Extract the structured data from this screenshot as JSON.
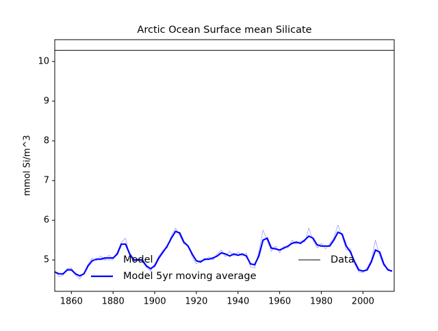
{
  "chart_data": {
    "type": "line",
    "title": "Arctic Ocean Surface mean Silicate",
    "ylabel": "mmol Si/m^3",
    "xlim": [
      1852,
      2015
    ],
    "ylim": [
      4.21,
      10.55
    ],
    "xticks": [
      1860,
      1880,
      1900,
      1920,
      1940,
      1960,
      1980,
      2000
    ],
    "yticks": [
      5,
      6,
      7,
      8,
      9,
      10
    ],
    "legend": "lower center",
    "x": [
      1852,
      1854,
      1856,
      1858,
      1860,
      1862,
      1864,
      1866,
      1868,
      1870,
      1872,
      1874,
      1876,
      1878,
      1880,
      1882,
      1884,
      1886,
      1888,
      1890,
      1892,
      1894,
      1896,
      1898,
      1900,
      1902,
      1904,
      1906,
      1908,
      1910,
      1912,
      1914,
      1916,
      1918,
      1920,
      1922,
      1924,
      1926,
      1928,
      1930,
      1932,
      1934,
      1936,
      1938,
      1940,
      1942,
      1944,
      1946,
      1948,
      1950,
      1952,
      1954,
      1956,
      1958,
      1960,
      1962,
      1964,
      1966,
      1968,
      1970,
      1972,
      1974,
      1976,
      1978,
      1980,
      1982,
      1984,
      1986,
      1988,
      1990,
      1992,
      1994,
      1996,
      1998,
      2000,
      2002,
      2004,
      2006,
      2008,
      2010,
      2012,
      2014
    ],
    "series": [
      {
        "name": "Model",
        "color": "#8080ff",
        "width": 0.6,
        "values": [
          4.72,
          4.58,
          4.62,
          4.78,
          4.8,
          4.62,
          4.52,
          4.68,
          4.9,
          5.05,
          4.98,
          5.1,
          5.0,
          5.12,
          5.02,
          5.2,
          5.45,
          5.55,
          5.1,
          4.95,
          5.05,
          4.95,
          4.82,
          4.72,
          4.9,
          5.1,
          5.25,
          5.3,
          5.62,
          5.8,
          5.62,
          5.4,
          5.38,
          5.08,
          4.9,
          5.0,
          4.98,
          5.08,
          5.0,
          5.15,
          5.25,
          5.08,
          5.22,
          5.1,
          5.2,
          5.1,
          5.18,
          4.82,
          4.8,
          5.2,
          5.75,
          5.5,
          5.22,
          5.35,
          5.18,
          5.35,
          5.3,
          5.5,
          5.4,
          5.48,
          5.45,
          5.8,
          5.5,
          5.3,
          5.42,
          5.28,
          5.4,
          5.55,
          5.88,
          5.6,
          5.25,
          5.28,
          4.9,
          4.7,
          4.68,
          4.8,
          5.0,
          5.5,
          5.1,
          4.85,
          4.78,
          4.7
        ]
      },
      {
        "name": "Model 5yr moving average",
        "color": "#0000ff",
        "width": 2.2,
        "values": [
          4.7,
          4.65,
          4.65,
          4.75,
          4.75,
          4.65,
          4.6,
          4.65,
          4.85,
          4.98,
          5.02,
          5.02,
          5.05,
          5.05,
          5.05,
          5.15,
          5.4,
          5.4,
          5.15,
          5.0,
          5.0,
          5.0,
          4.85,
          4.78,
          4.85,
          5.05,
          5.2,
          5.35,
          5.55,
          5.72,
          5.68,
          5.45,
          5.35,
          5.15,
          4.98,
          4.95,
          5.02,
          5.02,
          5.05,
          5.1,
          5.18,
          5.15,
          5.1,
          5.15,
          5.12,
          5.15,
          5.1,
          4.9,
          4.88,
          5.1,
          5.5,
          5.55,
          5.3,
          5.28,
          5.25,
          5.3,
          5.35,
          5.42,
          5.45,
          5.42,
          5.5,
          5.6,
          5.55,
          5.38,
          5.35,
          5.35,
          5.35,
          5.5,
          5.7,
          5.65,
          5.35,
          5.2,
          4.95,
          4.75,
          4.72,
          4.75,
          4.95,
          5.25,
          5.2,
          4.9,
          4.75,
          4.72
        ]
      },
      {
        "name": "Data",
        "color": "#000000",
        "width": 1,
        "x": [
          1852,
          2015
        ],
        "values": [
          10.28,
          10.28
        ]
      }
    ]
  }
}
